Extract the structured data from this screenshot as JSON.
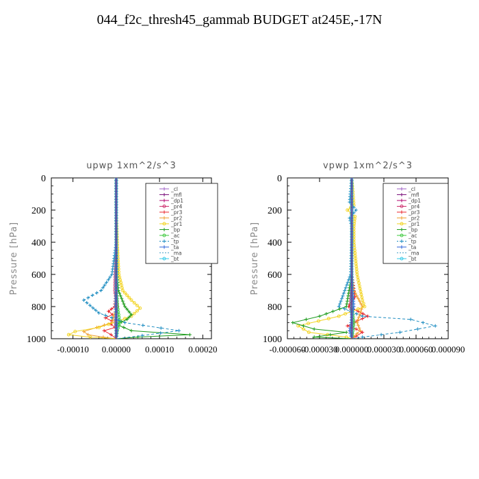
{
  "title": "044_f2c_thresh45_gammab  BUDGET at245E,-17N",
  "chart_data": [
    {
      "type": "line",
      "title": "upwp   1xm^2/s^3",
      "ylabel": "Pressure [hPa]",
      "xlabel": "",
      "xlim": [
        -0.00015,
        0.00022
      ],
      "ylim": [
        1000,
        0
      ],
      "xticks": [
        -0.0001,
        0,
        0.0001,
        0.0002
      ],
      "xtick_labels": [
        "-0.00010",
        "0.00000",
        "0.00010",
        "0.00020"
      ],
      "yticks": [
        0,
        200,
        400,
        600,
        800,
        1000
      ],
      "ytick_labels": [
        "0",
        "200",
        "400",
        "600",
        "800",
        "1000"
      ],
      "legend_position": "top-right",
      "series": [
        {
          "name": "_cl",
          "color": "#9e5fc4",
          "marker": "plus",
          "dash": "",
          "x": [
            0,
            0,
            0,
            0,
            0,
            0,
            0,
            0,
            0
          ],
          "y": [
            0,
            200,
            400,
            600,
            700,
            800,
            900,
            950,
            1000
          ]
        },
        {
          "name": "_mfl",
          "color": "#7a0c7a",
          "marker": "plus",
          "dash": "",
          "x": [
            0,
            0,
            0,
            0,
            0,
            0,
            0,
            0,
            0
          ],
          "y": [
            0,
            200,
            400,
            600,
            700,
            800,
            900,
            950,
            1000
          ]
        },
        {
          "name": "_dp1",
          "color": "#b0006e",
          "marker": "plus",
          "dash": "",
          "x": [
            0,
            0,
            0,
            0,
            0,
            0,
            0,
            0,
            0
          ],
          "y": [
            0,
            200,
            400,
            600,
            700,
            800,
            900,
            950,
            1000
          ]
        },
        {
          "name": "_pr4",
          "color": "#cc2a6a",
          "marker": "circle",
          "dash": "",
          "x": [
            0,
            0,
            0,
            -2e-06,
            -3e-06,
            2e-06,
            -2e-06,
            1e-06,
            0
          ],
          "y": [
            0,
            200,
            400,
            600,
            700,
            800,
            900,
            950,
            1000
          ]
        },
        {
          "name": "_pr3",
          "color": "#e8232b",
          "marker": "plus",
          "dash": "",
          "x": [
            0,
            0,
            0,
            0,
            0,
            -4e-06,
            -1.8e-05,
            -8e-06,
            -2.5e-05,
            -1e-05,
            -1.2e-05,
            -3e-06,
            -2.8e-05,
            -1.2e-05,
            0
          ],
          "y": [
            0,
            200,
            400,
            600,
            700,
            800,
            830,
            850,
            870,
            890,
            910,
            930,
            950,
            975,
            1000
          ]
        },
        {
          "name": "_pr2",
          "color": "#f0a030",
          "marker": "plus",
          "dash": "",
          "x": [
            0,
            0,
            0,
            2e-06,
            3e-06,
            1e-06,
            -1e-05,
            -4.5e-05,
            -7.5e-05,
            -6.5e-05,
            -3e-05,
            0
          ],
          "y": [
            0,
            200,
            400,
            600,
            700,
            800,
            900,
            930,
            955,
            975,
            990,
            1000
          ]
        },
        {
          "name": "_pr1",
          "color": "#f2d21a",
          "marker": "circle",
          "dash": "",
          "x": [
            0,
            0,
            2e-06,
            6e-06,
            1.5e-05,
            3.5e-05,
            5.5e-05,
            3.5e-05,
            5e-06,
            -4e-05,
            -9.5e-05,
            -0.00011,
            -6e-05,
            0
          ],
          "y": [
            0,
            200,
            400,
            600,
            700,
            760,
            810,
            860,
            890,
            930,
            955,
            975,
            990,
            1000
          ]
        },
        {
          "name": "_bp",
          "color": "#1a9a1a",
          "marker": "plus",
          "dash": "",
          "x": [
            0,
            0,
            0,
            2e-06,
            5e-06,
            2e-05,
            3.5e-05,
            2.5e-05,
            0.0,
            3.5e-05,
            0.00017,
            5e-05,
            0
          ],
          "y": [
            0,
            200,
            400,
            600,
            700,
            800,
            850,
            880,
            910,
            950,
            975,
            990,
            1000
          ]
        },
        {
          "name": "_ac",
          "color": "#3ac83a",
          "marker": "circle",
          "dash": "",
          "x": [
            0,
            0,
            0,
            0,
            0,
            3e-06,
            8e-06,
            2e-06,
            0
          ],
          "y": [
            0,
            200,
            400,
            600,
            700,
            800,
            900,
            950,
            1000
          ]
        },
        {
          "name": "_tp",
          "color": "#1a8bc0",
          "marker": "plus",
          "dash": "4,3",
          "x": [
            0,
            0,
            0,
            -1e-05,
            -3.5e-05,
            -7.5e-05,
            -4e-05,
            2e-05,
            0.000145,
            6e-05,
            0
          ],
          "y": [
            0,
            200,
            400,
            600,
            700,
            760,
            840,
            900,
            950,
            980,
            1000
          ]
        },
        {
          "name": "_ta",
          "color": "#2a60d8",
          "marker": "plus",
          "dash": "",
          "x": [
            0,
            0,
            0,
            0,
            0,
            -2e-06,
            2e-06,
            0
          ],
          "y": [
            0,
            200,
            400,
            600,
            700,
            800,
            950,
            1000
          ]
        },
        {
          "name": "_ma",
          "color": "#4aa0c8",
          "marker": "none",
          "dash": "4,3",
          "x": [
            0,
            0,
            0,
            0,
            0,
            0,
            0,
            0
          ],
          "y": [
            0,
            200,
            400,
            600,
            700,
            800,
            950,
            1000
          ]
        },
        {
          "name": "_bt",
          "color": "#30c8e8",
          "marker": "circle",
          "dash": "",
          "x": [
            0,
            0,
            0,
            0,
            0,
            0,
            0,
            0
          ],
          "y": [
            0,
            200,
            400,
            600,
            700,
            800,
            950,
            1000
          ]
        }
      ]
    },
    {
      "type": "line",
      "title": "vpwp   1xm^2/s^3",
      "ylabel": "Pressure [hPa]",
      "xlabel": "",
      "xlim": [
        -6e-05,
        9e-05
      ],
      "ylim": [
        1000,
        0
      ],
      "xticks": [
        -6e-05,
        -3e-05,
        0,
        3e-05,
        6e-05,
        9e-05
      ],
      "xtick_labels": [
        "-0.000060",
        "-0.000030",
        "0.000000",
        "0.000030",
        "0.000060",
        "0.000090"
      ],
      "yticks": [
        0,
        200,
        400,
        600,
        800,
        1000
      ],
      "ytick_labels": [
        "0",
        "200",
        "400",
        "600",
        "800",
        "1000"
      ],
      "legend_position": "top-right",
      "series": [
        {
          "name": "_cl",
          "color": "#9e5fc4",
          "marker": "plus",
          "dash": "",
          "x": [
            0,
            0,
            0,
            0,
            0,
            0,
            0,
            0
          ],
          "y": [
            0,
            200,
            400,
            600,
            800,
            900,
            950,
            1000
          ]
        },
        {
          "name": "_mfl",
          "color": "#7a0c7a",
          "marker": "plus",
          "dash": "",
          "x": [
            0,
            0,
            0,
            0,
            0,
            0,
            0,
            0
          ],
          "y": [
            0,
            200,
            400,
            600,
            800,
            900,
            950,
            1000
          ]
        },
        {
          "name": "_dp1",
          "color": "#b0006e",
          "marker": "plus",
          "dash": "",
          "x": [
            0,
            0,
            0,
            0,
            0,
            0,
            0,
            0
          ],
          "y": [
            0,
            200,
            400,
            600,
            800,
            900,
            950,
            1000
          ]
        },
        {
          "name": "_pr4",
          "color": "#cc2a6a",
          "marker": "circle",
          "dash": "",
          "x": [
            0,
            0,
            0,
            0,
            -1e-06,
            1e-06,
            0,
            0
          ],
          "y": [
            0,
            200,
            400,
            600,
            800,
            900,
            950,
            1000
          ]
        },
        {
          "name": "_pr3",
          "color": "#e8232b",
          "marker": "plus",
          "dash": "",
          "x": [
            0,
            0,
            0,
            0,
            3e-06,
            -3e-06,
            1.5e-05,
            5e-06,
            -4e-06,
            4e-06,
            1e-05,
            4e-06,
            0
          ],
          "y": [
            0,
            200,
            400,
            600,
            740,
            800,
            860,
            890,
            920,
            940,
            960,
            985,
            1000
          ]
        },
        {
          "name": "_pr2",
          "color": "#f0a030",
          "marker": "plus",
          "dash": "",
          "x": [
            0,
            0,
            0,
            0,
            2e-06,
            1e-05,
            5e-06,
            8e-06,
            2e-06,
            0
          ],
          "y": [
            0,
            200,
            400,
            600,
            700,
            800,
            900,
            950,
            985,
            1000
          ]
        },
        {
          "name": "_pr1",
          "color": "#f2d21a",
          "marker": "circle",
          "dash": "",
          "x": [
            0,
            2e-06,
            -4e-06,
            3e-06,
            2e-06,
            2e-06,
            5e-06,
            1e-05,
            1.2e-05,
            -1.2e-05,
            -5e-05,
            -4e-05,
            -5e-06,
            0
          ],
          "y": [
            0,
            170,
            200,
            240,
            300,
            400,
            600,
            760,
            800,
            860,
            920,
            960,
            990,
            1000
          ]
        },
        {
          "name": "_bp",
          "color": "#1a9a1a",
          "marker": "plus",
          "dash": "",
          "x": [
            0,
            0,
            0,
            0,
            -5e-06,
            -3e-05,
            -5.5e-05,
            -3.5e-05,
            -5e-06,
            -3.5e-05,
            0
          ],
          "y": [
            0,
            200,
            400,
            600,
            800,
            860,
            900,
            940,
            960,
            990,
            1000
          ]
        },
        {
          "name": "_ac",
          "color": "#3ac83a",
          "marker": "circle",
          "dash": "",
          "x": [
            0,
            0,
            0,
            0,
            0,
            2e-06,
            1e-06,
            0
          ],
          "y": [
            0,
            200,
            400,
            600,
            800,
            900,
            950,
            1000
          ]
        },
        {
          "name": "_tp",
          "color": "#1a8bc0",
          "marker": "plus",
          "dash": "4,3",
          "x": [
            0,
            -2e-06,
            4e-06,
            -2e-06,
            0,
            0,
            -1e-06,
            -1.2e-05,
            1e-05,
            5.5e-05,
            7.8e-05,
            4.5e-05,
            1e-05,
            0
          ],
          "y": [
            0,
            150,
            200,
            250,
            300,
            400,
            600,
            800,
            860,
            880,
            920,
            960,
            990,
            1000
          ]
        },
        {
          "name": "_ta",
          "color": "#2a60d8",
          "marker": "plus",
          "dash": "",
          "x": [
            0,
            0,
            0,
            0,
            2e-06,
            -2e-06,
            0
          ],
          "y": [
            0,
            200,
            400,
            600,
            800,
            950,
            1000
          ]
        },
        {
          "name": "_ma",
          "color": "#4aa0c8",
          "marker": "none",
          "dash": "4,3",
          "x": [
            0,
            0,
            0,
            0,
            0,
            0,
            0
          ],
          "y": [
            0,
            200,
            400,
            600,
            800,
            950,
            1000
          ]
        },
        {
          "name": "_bt",
          "color": "#30c8e8",
          "marker": "circle",
          "dash": "",
          "x": [
            0,
            0,
            0,
            0,
            0,
            0,
            0
          ],
          "y": [
            0,
            200,
            400,
            600,
            800,
            950,
            1000
          ]
        }
      ]
    }
  ]
}
